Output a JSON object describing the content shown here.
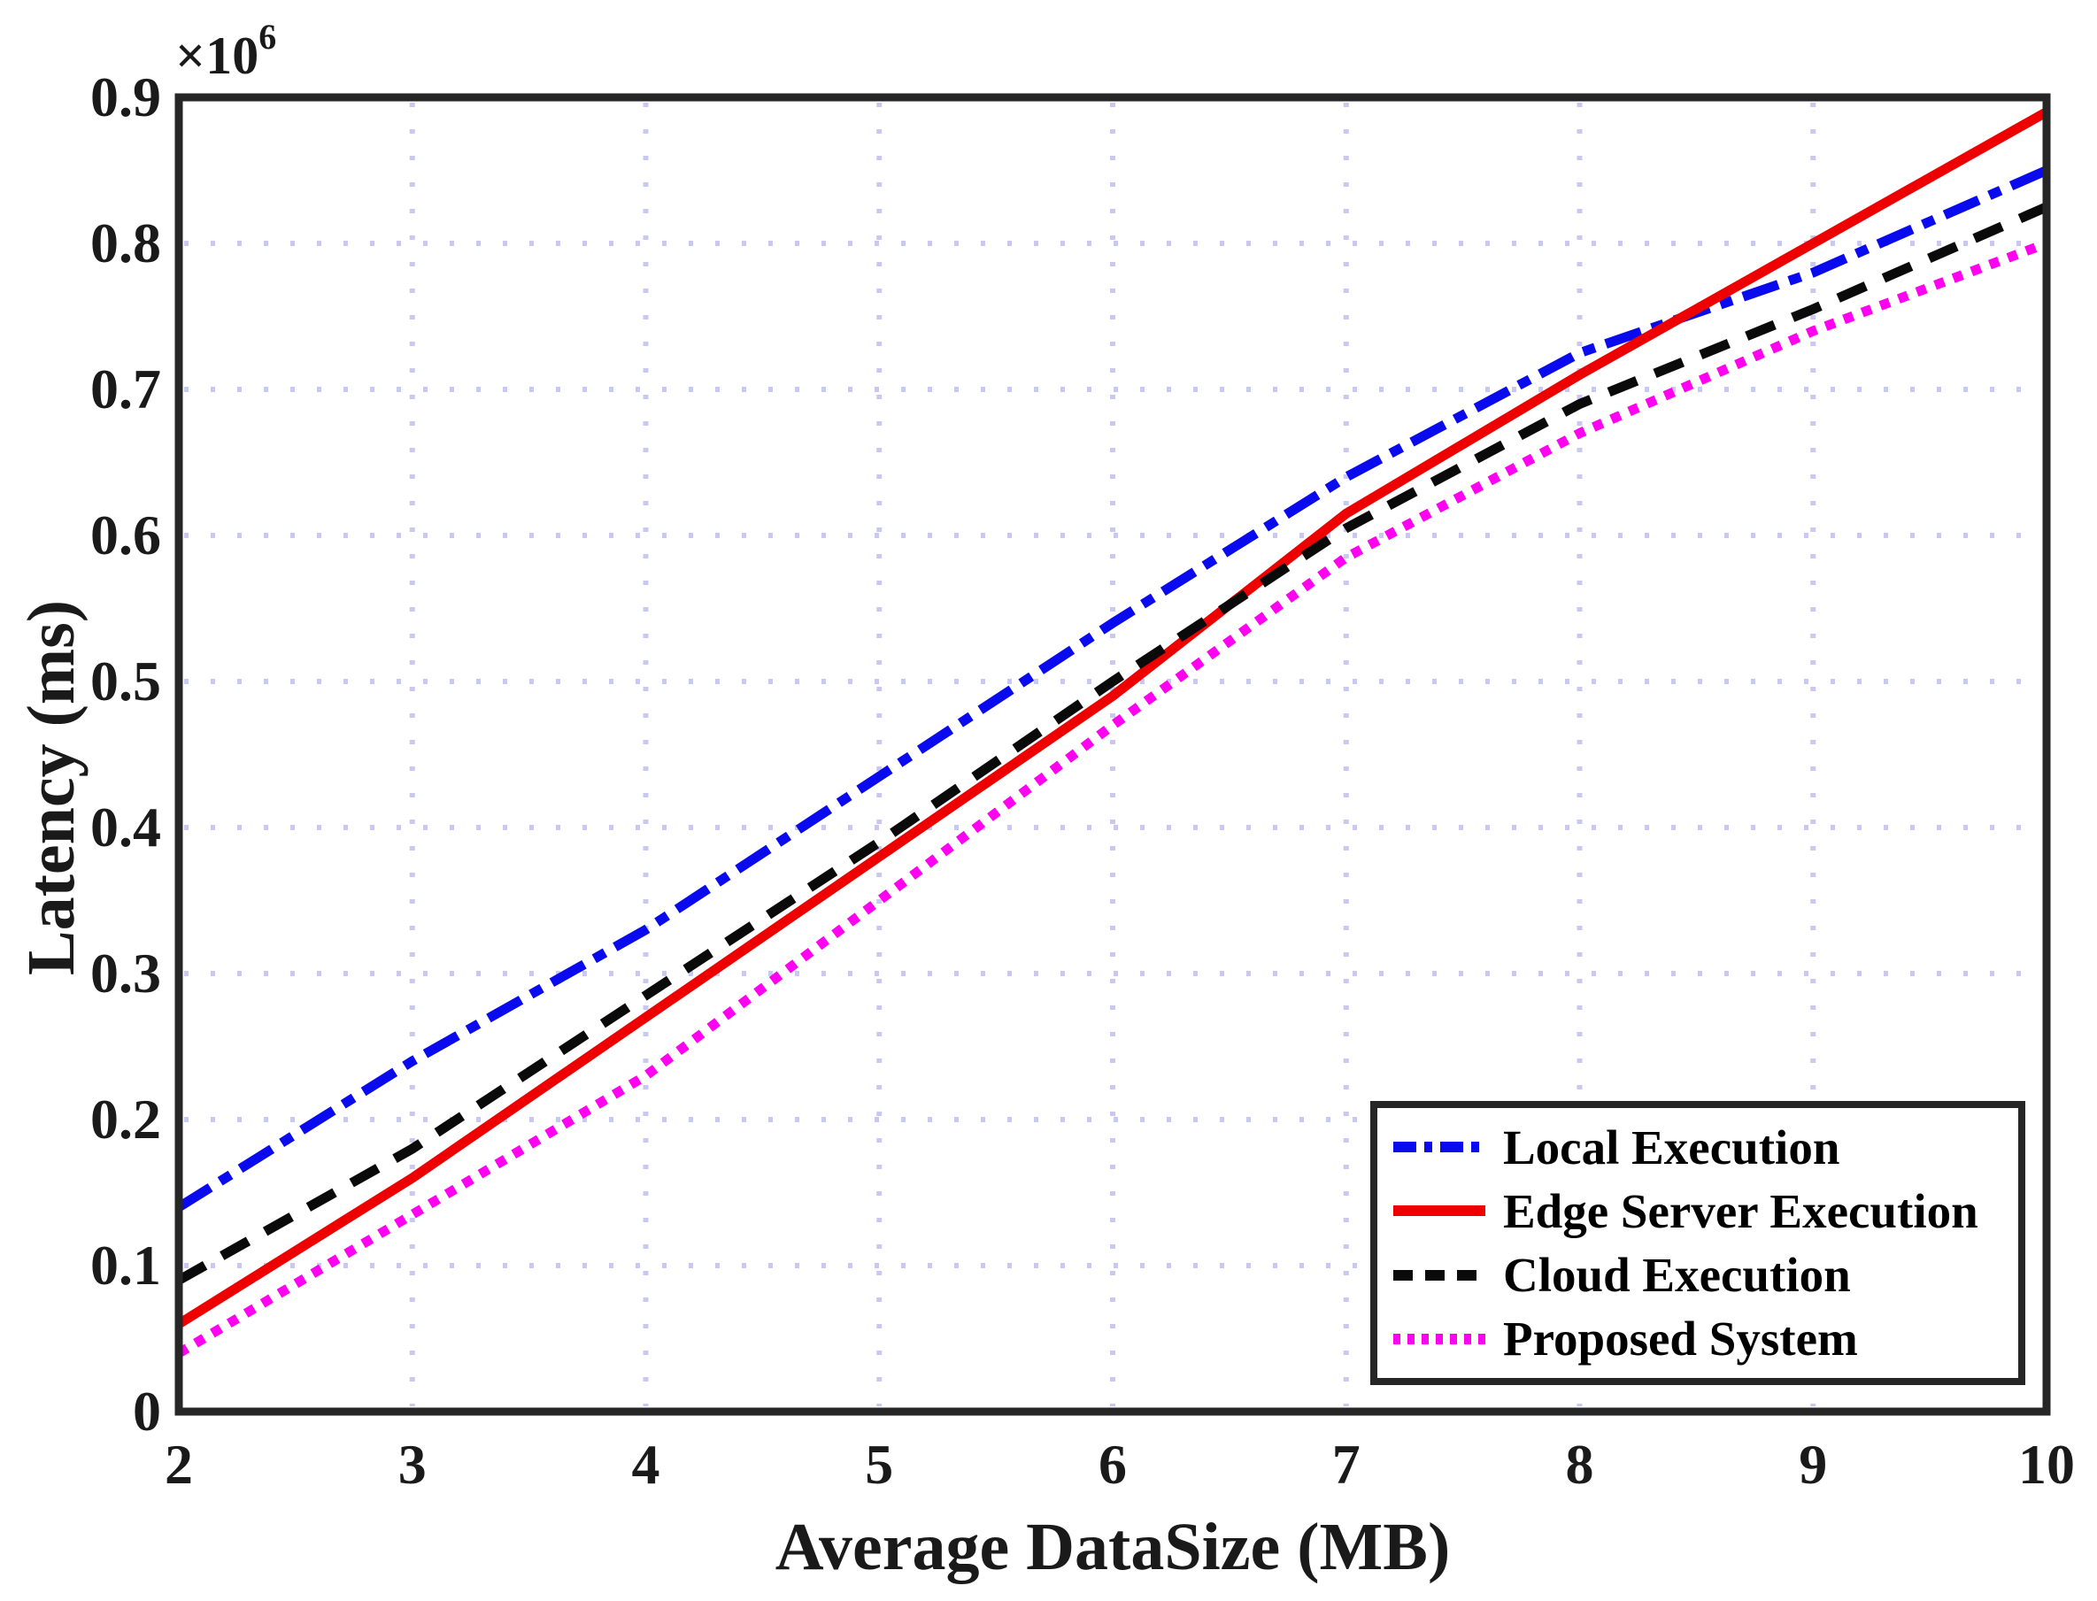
{
  "figure": {
    "background": "#ffffff",
    "frame_color": "#262626",
    "grid_color": "#c9c9f0"
  },
  "axes": {
    "x": {
      "title": "Average DataSize (MB)",
      "ticks": [
        2,
        3,
        4,
        5,
        6,
        7,
        8,
        9,
        10
      ],
      "tick_labels": [
        "2",
        "3",
        "4",
        "5",
        "6",
        "7",
        "8",
        "9",
        "10"
      ]
    },
    "y": {
      "title": "Latency (ms)",
      "offset_base": "×10",
      "offset_exp": "6",
      "ticks": [
        0,
        0.1,
        0.2,
        0.3,
        0.4,
        0.5,
        0.6,
        0.7,
        0.8,
        0.9
      ],
      "tick_labels": [
        "0",
        "0.1",
        "0.2",
        "0.3",
        "0.4",
        "0.5",
        "0.6",
        "0.7",
        "0.8",
        "0.9"
      ]
    }
  },
  "legend": {
    "entries": [
      {
        "label": "Local Execution",
        "color": "#0a0aee",
        "style": "dash-dot"
      },
      {
        "label": "Edge Server Execution",
        "color": "#ee0000",
        "style": "solid"
      },
      {
        "label": "Cloud Execution",
        "color": "#0a0a0a",
        "style": "dashed"
      },
      {
        "label": "Proposed System",
        "color": "#ff00f0",
        "style": "dotted"
      }
    ]
  },
  "chart_data": {
    "type": "line",
    "title": "",
    "xlabel": "Average DataSize (MB)",
    "ylabel": "Latency (ms)",
    "x": [
      2,
      3,
      4,
      5,
      6,
      7,
      8,
      9,
      10
    ],
    "xlim": [
      2,
      10
    ],
    "ylim": [
      0,
      900000
    ],
    "y_unit_multiplier": 1000000,
    "grid": true,
    "legend_position": "lower right",
    "series": [
      {
        "name": "Local Execution",
        "color": "#0a0aee",
        "style": "dash-dot",
        "values": [
          140000,
          240000,
          330000,
          435000,
          540000,
          640000,
          725000,
          780000,
          850000
        ]
      },
      {
        "name": "Edge Server Execution",
        "color": "#ee0000",
        "style": "solid",
        "values": [
          60000,
          160000,
          270000,
          380000,
          490000,
          615000,
          710000,
          800000,
          890000
        ]
      },
      {
        "name": "Cloud Execution",
        "color": "#0a0a0a",
        "style": "dashed",
        "values": [
          90000,
          180000,
          285000,
          390000,
          500000,
          605000,
          690000,
          755000,
          825000
        ]
      },
      {
        "name": "Proposed System",
        "color": "#ff00f0",
        "style": "dotted",
        "values": [
          40000,
          135000,
          230000,
          350000,
          470000,
          585000,
          670000,
          740000,
          800000
        ]
      }
    ]
  }
}
